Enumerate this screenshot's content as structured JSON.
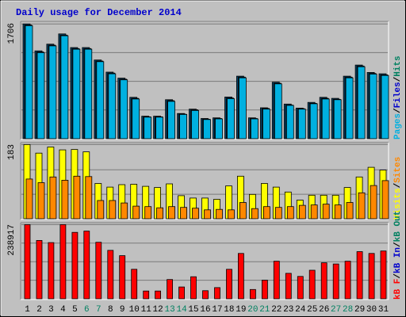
{
  "title": "Daily usage for December 2014",
  "colors": {
    "background": "#c0c0c0",
    "title": "#0000cc",
    "grid": "#7a7a7a",
    "hits": "#008060",
    "files": "#0000cc",
    "pages": "#00b0e0",
    "visits": "#ffff00",
    "sites": "#ff8800",
    "kbytes": "#ff0000",
    "kb_in": "#0000cc",
    "kb_out": "#008060",
    "weekend_day": "#008060",
    "weekday": "#000000"
  },
  "chart_data": [
    {
      "type": "bar",
      "panel": "hits-files-pages",
      "ymax_label": "1706",
      "ylim": [
        0,
        1706
      ],
      "legend": [
        "Pages",
        "/",
        "Files",
        "/",
        "Hits"
      ],
      "categories": [
        "1",
        "2",
        "3",
        "4",
        "5",
        "6",
        "7",
        "8",
        "9",
        "10",
        "11",
        "12",
        "13",
        "14",
        "15",
        "16",
        "17",
        "18",
        "19",
        "20",
        "21",
        "22",
        "23",
        "24",
        "25",
        "26",
        "27",
        "28",
        "29",
        "30",
        "31"
      ],
      "series": [
        {
          "name": "Hits",
          "values": [
            1706,
            1305,
            1406,
            1558,
            1355,
            1355,
            1170,
            990,
            900,
            615,
            335,
            335,
            580,
            375,
            440,
            300,
            310,
            620,
            930,
            310,
            460,
            840,
            515,
            455,
            540,
            615,
            600,
            930,
            1095,
            985,
            965
          ]
        },
        {
          "name": "Files",
          "values": [
            1690,
            1290,
            1390,
            1540,
            1340,
            1340,
            1155,
            975,
            885,
            600,
            325,
            325,
            565,
            365,
            430,
            290,
            300,
            605,
            915,
            300,
            450,
            825,
            500,
            445,
            525,
            600,
            585,
            915,
            1080,
            970,
            950
          ]
        },
        {
          "name": "Pages",
          "values": [
            1680,
            1280,
            1380,
            1530,
            1330,
            1330,
            1145,
            965,
            875,
            590,
            320,
            320,
            555,
            360,
            420,
            285,
            295,
            595,
            905,
            295,
            440,
            815,
            495,
            440,
            520,
            590,
            580,
            905,
            1070,
            960,
            940
          ]
        }
      ]
    },
    {
      "type": "bar",
      "panel": "visits-sites",
      "ymax_label": "183",
      "ylim": [
        0,
        183
      ],
      "legend": [
        "Visits",
        "/",
        "Sites"
      ],
      "categories": [
        "1",
        "2",
        "3",
        "4",
        "5",
        "6",
        "7",
        "8",
        "9",
        "10",
        "11",
        "12",
        "13",
        "14",
        "15",
        "16",
        "17",
        "18",
        "19",
        "20",
        "21",
        "22",
        "23",
        "24",
        "25",
        "26",
        "27",
        "28",
        "29",
        "30",
        "31"
      ],
      "series": [
        {
          "name": "Visits",
          "values": [
            183,
            162,
            177,
            170,
            171,
            165,
            87,
            78,
            84,
            85,
            80,
            77,
            86,
            57,
            51,
            51,
            48,
            81,
            105,
            60,
            87,
            78,
            66,
            46,
            58,
            58,
            58,
            77,
            103,
            127,
            120
          ]
        },
        {
          "name": "Sites",
          "values": [
            98,
            89,
            103,
            95,
            105,
            104,
            45,
            45,
            39,
            31,
            30,
            27,
            30,
            28,
            26,
            22,
            23,
            22,
            40,
            25,
            30,
            28,
            30,
            33,
            34,
            36,
            34,
            40,
            64,
            82,
            94
          ]
        }
      ]
    },
    {
      "type": "bar",
      "panel": "kbytes",
      "ymax_label": "238917",
      "ylim": [
        0,
        238917
      ],
      "legend": [
        "kB F",
        "/",
        "kB In",
        "/",
        "kB Out"
      ],
      "categories": [
        "1",
        "2",
        "3",
        "4",
        "5",
        "6",
        "7",
        "8",
        "9",
        "10",
        "11",
        "12",
        "13",
        "14",
        "15",
        "16",
        "17",
        "18",
        "19",
        "20",
        "21",
        "22",
        "23",
        "24",
        "25",
        "26",
        "27",
        "28",
        "29",
        "30",
        "31"
      ],
      "series": [
        {
          "name": "kB F",
          "values": [
            238917,
            188000,
            181000,
            239000,
            214000,
            218000,
            182000,
            156000,
            139000,
            95000,
            25000,
            25000,
            62000,
            38000,
            71000,
            26000,
            36000,
            95000,
            146000,
            30000,
            60000,
            121000,
            82000,
            72000,
            92000,
            116000,
            112000,
            121000,
            152000,
            146000,
            154000
          ]
        }
      ]
    }
  ],
  "day_labels": [
    "1",
    "2",
    "3",
    "4",
    "5",
    "6",
    "7",
    "8",
    "9",
    "10",
    "11",
    "12",
    "13",
    "14",
    "15",
    "16",
    "17",
    "18",
    "19",
    "20",
    "21",
    "22",
    "23",
    "24",
    "25",
    "26",
    "27",
    "28",
    "29",
    "30",
    "31"
  ],
  "weekend_days": [
    "6",
    "7",
    "13",
    "14",
    "20",
    "21",
    "27",
    "28"
  ]
}
